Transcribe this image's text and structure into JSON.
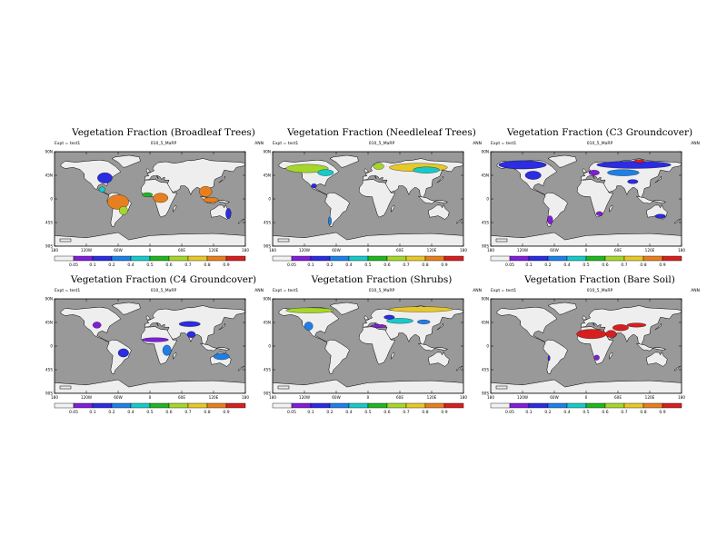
{
  "figure": {
    "exp_label": "Expt = test1",
    "case_label": "010_5_MaRP",
    "season_label": "ANN"
  },
  "colorbar": {
    "colors": [
      "#f2f2f2",
      "#7f1fd6",
      "#2c2ce0",
      "#1f7fe6",
      "#18c9c9",
      "#22b522",
      "#a6d62b",
      "#e6c828",
      "#e67f1f",
      "#d62020"
    ],
    "tick_labels": [
      "0.05",
      "0.1",
      "0.2",
      "0.4",
      "0.5",
      "0.6",
      "0.7",
      "0.8",
      "0.9"
    ]
  },
  "axes": {
    "lon_labels": [
      "180",
      "120W",
      "60W",
      "0",
      "60E",
      "120E",
      "180"
    ],
    "lat_labels": [
      "90N",
      "45N",
      "0",
      "45S",
      "90S"
    ]
  },
  "style": {
    "ocean_color": "#999999",
    "land_color": "#eeeeee"
  },
  "chart_data": [
    {
      "type": "heatmap",
      "title": "Vegetation Fraction (Broadleaf Trees)",
      "xlim": [
        -180,
        180
      ],
      "ylim": [
        -90,
        90
      ],
      "regions": [
        {
          "name": "Eastern North America",
          "lon": -85,
          "lat": 40,
          "rx": 14,
          "ry": 10,
          "level": 2
        },
        {
          "name": "Central America",
          "lon": -90,
          "lat": 18,
          "rx": 6,
          "ry": 5,
          "level": 4
        },
        {
          "name": "Amazon",
          "lon": -60,
          "lat": -6,
          "rx": 20,
          "ry": 14,
          "level": 8
        },
        {
          "name": "Southern Brazil",
          "lon": -50,
          "lat": -22,
          "rx": 8,
          "ry": 8,
          "level": 6
        },
        {
          "name": "Congo Basin",
          "lon": 20,
          "lat": 2,
          "rx": 14,
          "ry": 9,
          "level": 8
        },
        {
          "name": "West Africa",
          "lon": -5,
          "lat": 8,
          "rx": 10,
          "ry": 4,
          "level": 5
        },
        {
          "name": "Southeast Asia",
          "lon": 105,
          "lat": 14,
          "rx": 12,
          "ry": 10,
          "level": 8
        },
        {
          "name": "Indonesia",
          "lon": 115,
          "lat": -2,
          "rx": 14,
          "ry": 5,
          "level": 8
        },
        {
          "name": "Eastern Australia",
          "lon": 148,
          "lat": -28,
          "rx": 5,
          "ry": 10,
          "level": 2
        }
      ]
    },
    {
      "type": "heatmap",
      "title": "Vegetation Fraction (Needleleaf Trees)",
      "xlim": [
        -180,
        180
      ],
      "ylim": [
        -90,
        90
      ],
      "regions": [
        {
          "name": "Boreal North America",
          "lon": -115,
          "lat": 58,
          "rx": 40,
          "ry": 8,
          "level": 6
        },
        {
          "name": "Eastern Canada",
          "lon": -80,
          "lat": 50,
          "rx": 15,
          "ry": 6,
          "level": 4
        },
        {
          "name": "Scandinavia",
          "lon": 20,
          "lat": 62,
          "rx": 10,
          "ry": 6,
          "level": 6
        },
        {
          "name": "Siberian Taiga",
          "lon": 95,
          "lat": 60,
          "rx": 55,
          "ry": 8,
          "level": 7
        },
        {
          "name": "Central Siberia",
          "lon": 110,
          "lat": 55,
          "rx": 25,
          "ry": 6,
          "level": 4
        },
        {
          "name": "Chile",
          "lon": -72,
          "lat": -42,
          "rx": 3,
          "ry": 8,
          "level": 3
        },
        {
          "name": "Mexico Highlands",
          "lon": -102,
          "lat": 25,
          "rx": 5,
          "ry": 4,
          "level": 2
        }
      ]
    },
    {
      "type": "heatmap",
      "title": "Vegetation Fraction (C3 Groundcover)",
      "xlim": [
        -180,
        180
      ],
      "ylim": [
        -90,
        90
      ],
      "regions": [
        {
          "name": "Alaska and Northern Canada",
          "lon": -120,
          "lat": 65,
          "rx": 45,
          "ry": 8,
          "level": 2
        },
        {
          "name": "North American Plains",
          "lon": -100,
          "lat": 45,
          "rx": 15,
          "ry": 8,
          "level": 2
        },
        {
          "name": "Northern Eurasia",
          "lon": 90,
          "lat": 65,
          "rx": 70,
          "ry": 7,
          "level": 2
        },
        {
          "name": "Central Asian Steppe",
          "lon": 70,
          "lat": 50,
          "rx": 30,
          "ry": 6,
          "level": 3
        },
        {
          "name": "Taymyr",
          "lon": 100,
          "lat": 72,
          "rx": 10,
          "ry": 3,
          "level": 9
        },
        {
          "name": "Europe",
          "lon": 15,
          "lat": 50,
          "rx": 10,
          "ry": 5,
          "level": 1
        },
        {
          "name": "Tibet",
          "lon": 88,
          "lat": 33,
          "rx": 10,
          "ry": 4,
          "level": 2
        },
        {
          "name": "Patagonia",
          "lon": -68,
          "lat": -40,
          "rx": 5,
          "ry": 8,
          "level": 1
        },
        {
          "name": "South Africa",
          "lon": 25,
          "lat": -28,
          "rx": 6,
          "ry": 4,
          "level": 1
        },
        {
          "name": "Southeast Australia",
          "lon": 140,
          "lat": -33,
          "rx": 10,
          "ry": 4,
          "level": 2
        }
      ]
    },
    {
      "type": "heatmap",
      "title": "Vegetation Fraction (C4 Groundcover)",
      "xlim": [
        -180,
        180
      ],
      "ylim": [
        -90,
        90
      ],
      "regions": [
        {
          "name": "Great Plains",
          "lon": -100,
          "lat": 40,
          "rx": 8,
          "ry": 6,
          "level": 1
        },
        {
          "name": "Brazilian Cerrado",
          "lon": -50,
          "lat": -13,
          "rx": 10,
          "ry": 8,
          "level": 2
        },
        {
          "name": "Sahel",
          "lon": 10,
          "lat": 12,
          "rx": 25,
          "ry": 4,
          "level": 1
        },
        {
          "name": "East African Savanna",
          "lon": 32,
          "lat": -8,
          "rx": 8,
          "ry": 10,
          "level": 3
        },
        {
          "name": "India",
          "lon": 78,
          "lat": 22,
          "rx": 8,
          "ry": 6,
          "level": 2
        },
        {
          "name": "Central Asia",
          "lon": 75,
          "lat": 42,
          "rx": 20,
          "ry": 5,
          "level": 2
        },
        {
          "name": "Northern Australia",
          "lon": 135,
          "lat": -20,
          "rx": 15,
          "ry": 6,
          "level": 3
        }
      ]
    },
    {
      "type": "heatmap",
      "title": "Vegetation Fraction (Shrubs)",
      "xlim": [
        -180,
        180
      ],
      "ylim": [
        -90,
        90
      ],
      "regions": [
        {
          "name": "Arctic North America",
          "lon": -110,
          "lat": 68,
          "rx": 45,
          "ry": 5,
          "level": 6
        },
        {
          "name": "Arctic Siberia",
          "lon": 100,
          "lat": 70,
          "rx": 60,
          "ry": 5,
          "level": 7
        },
        {
          "name": "Central Eurasia",
          "lon": 60,
          "lat": 48,
          "rx": 25,
          "ry": 5,
          "level": 4
        },
        {
          "name": "Mongolia",
          "lon": 105,
          "lat": 46,
          "rx": 12,
          "ry": 4,
          "level": 3
        },
        {
          "name": "Western US",
          "lon": -112,
          "lat": 38,
          "rx": 8,
          "ry": 8,
          "level": 3
        },
        {
          "name": "Mediterranean",
          "lon": 20,
          "lat": 38,
          "rx": 15,
          "ry": 3,
          "level": 1
        },
        {
          "name": "Eastern Europe",
          "lon": 40,
          "lat": 55,
          "rx": 10,
          "ry": 4,
          "level": 2
        }
      ]
    },
    {
      "type": "heatmap",
      "title": "Vegetation Fraction (Bare Soil)",
      "xlim": [
        -180,
        180
      ],
      "ylim": [
        -90,
        90
      ],
      "regions": [
        {
          "name": "Sahara",
          "lon": 10,
          "lat": 23,
          "rx": 28,
          "ry": 9,
          "level": 9
        },
        {
          "name": "Arabian Peninsula",
          "lon": 47,
          "lat": 23,
          "rx": 10,
          "ry": 7,
          "level": 9
        },
        {
          "name": "Iran and Central Asia",
          "lon": 65,
          "lat": 35,
          "rx": 15,
          "ry": 6,
          "level": 9
        },
        {
          "name": "Taklamakan and Gobi",
          "lon": 95,
          "lat": 40,
          "rx": 18,
          "ry": 4,
          "level": 9
        },
        {
          "name": "Namib and Kalahari",
          "lon": 20,
          "lat": -22,
          "rx": 5,
          "ry": 5,
          "level": 1
        },
        {
          "name": "Atacama",
          "lon": -70,
          "lat": -23,
          "rx": 2,
          "ry": 5,
          "level": 2
        }
      ]
    }
  ]
}
